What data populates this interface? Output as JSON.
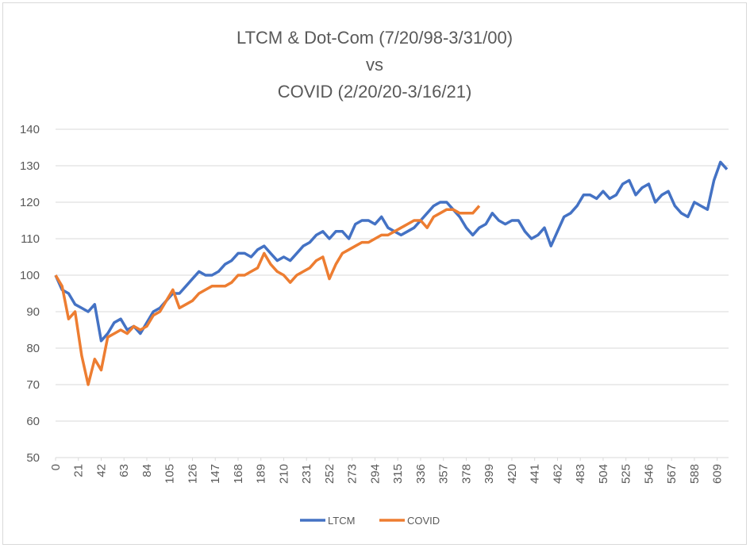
{
  "chart_data": {
    "type": "line",
    "title": [
      "LTCM & Dot-Com (7/20/98-3/31/00)",
      "vs",
      "COVID (2/20/20-3/16/21)"
    ],
    "x": [
      0,
      6,
      12,
      18,
      24,
      30,
      36,
      42,
      48,
      54,
      60,
      66,
      72,
      78,
      84,
      90,
      96,
      102,
      108,
      114,
      120,
      126,
      132,
      138,
      144,
      150,
      156,
      162,
      168,
      174,
      180,
      186,
      192,
      198,
      204,
      210,
      216,
      222,
      228,
      234,
      240,
      246,
      252,
      258,
      264,
      270,
      276,
      282,
      288,
      294,
      300,
      306,
      312,
      318,
      324,
      330,
      336,
      342,
      348,
      354,
      360,
      366,
      372,
      378,
      384,
      390,
      396,
      402,
      408,
      414,
      420,
      426,
      432,
      438,
      444,
      450,
      456,
      462,
      468,
      474,
      480,
      486,
      492,
      498,
      504,
      510,
      516,
      522,
      528,
      534,
      540,
      546,
      552,
      558,
      564,
      570,
      576,
      582,
      588,
      594,
      600,
      606,
      612,
      618
    ],
    "series": [
      {
        "name": "LTCM",
        "color": "#4472c4",
        "values": [
          100,
          96,
          95,
          92,
          91,
          90,
          92,
          82,
          84,
          87,
          88,
          85,
          86,
          84,
          87,
          90,
          91,
          93,
          95,
          95,
          97,
          99,
          101,
          100,
          100,
          101,
          103,
          104,
          106,
          106,
          105,
          107,
          108,
          106,
          104,
          105,
          104,
          106,
          108,
          109,
          111,
          112,
          110,
          112,
          112,
          110,
          114,
          115,
          115,
          114,
          116,
          113,
          112,
          111,
          112,
          113,
          115,
          117,
          119,
          120,
          120,
          118,
          116,
          113,
          111,
          113,
          114,
          117,
          115,
          114,
          115,
          115,
          112,
          110,
          111,
          113,
          108,
          112,
          116,
          117,
          119,
          122,
          122,
          121,
          123,
          121,
          122,
          125,
          126,
          122,
          124,
          125,
          120,
          122,
          123,
          119,
          117,
          116,
          120,
          119,
          118,
          126,
          131,
          129
        ]
      },
      {
        "name": "COVID",
        "color": "#ed7d31",
        "values": [
          100,
          97,
          88,
          90,
          78,
          70,
          77,
          74,
          83,
          84,
          85,
          84,
          86,
          85,
          86,
          89,
          90,
          93,
          96,
          91,
          92,
          93,
          95,
          96,
          97,
          97,
          97,
          98,
          100,
          100,
          101,
          102,
          106,
          103,
          101,
          100,
          98,
          100,
          101,
          102,
          104,
          105,
          99,
          103,
          106,
          107,
          108,
          109,
          109,
          110,
          111,
          111,
          112,
          113,
          114,
          115,
          115,
          113,
          116,
          117,
          118,
          118,
          117,
          117,
          117,
          119,
          null,
          null,
          null,
          null,
          null,
          null,
          null,
          null,
          null,
          null,
          null,
          null,
          null,
          null,
          null,
          null,
          null,
          null,
          null,
          null,
          null,
          null,
          null,
          null,
          null,
          null,
          null,
          null,
          null,
          null,
          null,
          null,
          null,
          null,
          null,
          null,
          null,
          null
        ]
      }
    ],
    "xlim": [
      0,
      618
    ],
    "xticks": [
      0,
      21,
      42,
      63,
      84,
      105,
      126,
      147,
      168,
      189,
      210,
      231,
      252,
      273,
      294,
      315,
      336,
      357,
      378,
      399,
      420,
      441,
      462,
      483,
      504,
      525,
      546,
      567,
      588,
      609
    ],
    "ylim": [
      50,
      140
    ],
    "yticks": [
      50,
      60,
      70,
      80,
      90,
      100,
      110,
      120,
      130,
      140
    ],
    "grid": true,
    "legend": "bottom"
  }
}
